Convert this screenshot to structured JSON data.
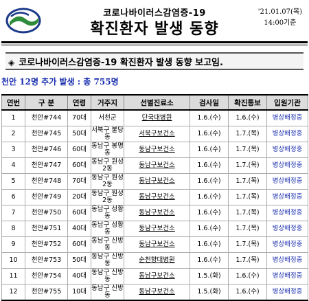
{
  "header": {
    "subtitle": "코로나바이러스감염증-19",
    "title": "확진환자 발생 동향",
    "date": "'21.01.07(목)",
    "time": "14:00기준"
  },
  "notice": {
    "text": "코로나바이러스감염증-19 확진환자 발생 동향 보고임."
  },
  "summary": {
    "text": "천안 12명 추가 발생 : 총 755명"
  },
  "table": {
    "headers": [
      "연번",
      "구 분",
      "연령",
      "거주지",
      "선별진료소",
      "검사일",
      "확진통보",
      "입원기관"
    ],
    "rows": [
      [
        "1",
        "천안#744",
        "70대",
        "서천군",
        "단국대병원",
        "1.6.(수)",
        "1.6.(수)",
        "병상배정중"
      ],
      [
        "2",
        "천안#745",
        "50대",
        "서북구 불당동",
        "서북구보건소",
        "1.6.(수)",
        "1.7.(목)",
        "병상배정중"
      ],
      [
        "3",
        "천안#746",
        "60대",
        "동남구 봉명동",
        "동남구보건소",
        "1.6.(수)",
        "1.7.(목)",
        "병상배정중"
      ],
      [
        "4",
        "천안#747",
        "60대",
        "동남구 원성2동",
        "동남구보건소",
        "1.6.(수)",
        "1.7.(목)",
        "병상배정중"
      ],
      [
        "5",
        "천안#748",
        "70대",
        "동남구 원성2동",
        "동남구보건소",
        "1.6.(수)",
        "1.7.(목)",
        "병상배정중"
      ],
      [
        "6",
        "천안#749",
        "20대",
        "동남구 원성2동",
        "동남구보건소",
        "1.6.(수)",
        "1.7.(목)",
        "병상배정중"
      ],
      [
        "7",
        "천안#750",
        "60대",
        "동남구 성황동",
        "동남구보건소",
        "1.6.(수)",
        "1.7.(목)",
        "병상배정중"
      ],
      [
        "8",
        "천안#751",
        "40대",
        "동남구 성황동",
        "동남구보건소",
        "1.6.(수)",
        "1.7.(목)",
        "병상배정중"
      ],
      [
        "9",
        "천안#752",
        "60대",
        "동남구 신방동",
        "동남구보건소",
        "1.6.(수)",
        "1.7.(목)",
        "병상배정중"
      ],
      [
        "10",
        "천안#753",
        "50대",
        "동남구 신방동",
        "순천향대병원",
        "1.6.(수)",
        "1.7.(목)",
        "병상배정중"
      ],
      [
        "11",
        "천안#754",
        "40대",
        "동남구 신방동",
        "동남구보건소",
        "1.5.(화)",
        "1.6.(수)",
        "병상배정중"
      ],
      [
        "12",
        "천안#755",
        "10대",
        "동남구 신방동",
        "동남구보건소",
        "1.5.(화)",
        "1.6.(수)",
        "병상배정중"
      ]
    ]
  },
  "colors": {
    "accent_blue": "#1a2fae",
    "logo_green": "#2e8b3a",
    "logo_navy": "#1d3a8a"
  }
}
